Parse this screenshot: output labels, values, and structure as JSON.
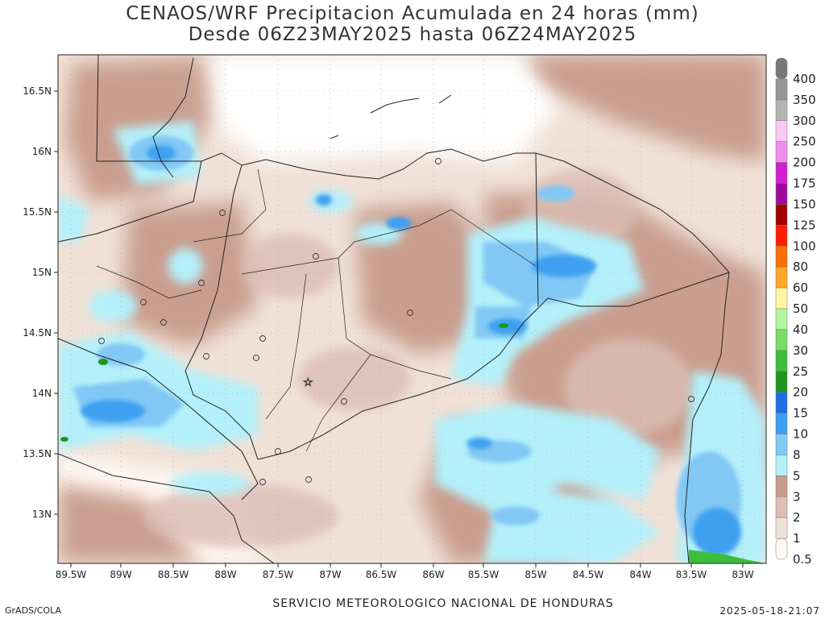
{
  "title": {
    "line1": "CENAOS/WRF Precipitacion Acumulada en 24 horas (mm)",
    "line2": "Desde 06Z23MAY2025 hasta 06Z24MAY2025"
  },
  "map": {
    "lon_ticks": [
      "89.5W",
      "89W",
      "88.5W",
      "88W",
      "87.5W",
      "87W",
      "86.5W",
      "86W",
      "85.5W",
      "85W",
      "84.5W",
      "84W",
      "83.5W",
      "83W"
    ],
    "lat_ticks": [
      "16.5N",
      "16N",
      "15.5N",
      "15N",
      "14.5N",
      "14N",
      "13.5N",
      "13N"
    ],
    "lon_range": [
      -89.5,
      -82.8
    ],
    "lat_range": [
      12.6,
      16.8
    ]
  },
  "legend": {
    "levels": [
      {
        "label": "400",
        "color": "#787878"
      },
      {
        "label": "350",
        "color": "#969696"
      },
      {
        "label": "300",
        "color": "#b4b4b4"
      },
      {
        "label": "250",
        "color": "#f5c8f5"
      },
      {
        "label": "200",
        "color": "#f08cf0"
      },
      {
        "label": "175",
        "color": "#d21ed2"
      },
      {
        "label": "150",
        "color": "#a00aa0"
      },
      {
        "label": "125",
        "color": "#a50000"
      },
      {
        "label": "100",
        "color": "#ff1e00"
      },
      {
        "label": "80",
        "color": "#ff6e00"
      },
      {
        "label": "60",
        "color": "#ffa528"
      },
      {
        "label": "50",
        "color": "#fff5a0"
      },
      {
        "label": "40",
        "color": "#b4f5a0"
      },
      {
        "label": "30",
        "color": "#78dc64"
      },
      {
        "label": "25",
        "color": "#3cbe3c"
      },
      {
        "label": "20",
        "color": "#1e961e"
      },
      {
        "label": "15",
        "color": "#1e6ee6"
      },
      {
        "label": "10",
        "color": "#3ca0f0"
      },
      {
        "label": "8",
        "color": "#82c8f5"
      },
      {
        "label": "5",
        "color": "#b4f0fa"
      },
      {
        "label": "3",
        "color": "#c89b8c"
      },
      {
        "label": "2",
        "color": "#dcbeb4"
      },
      {
        "label": "1",
        "color": "#f0e1d7"
      },
      {
        "label": "0.5",
        "color": "#fff8f2"
      }
    ]
  },
  "footer": {
    "left": "GrADS/COLA",
    "center": "SERVICIO METEOROLOGICO NACIONAL DE HONDURAS",
    "right": "2025-05-18-21:07"
  }
}
